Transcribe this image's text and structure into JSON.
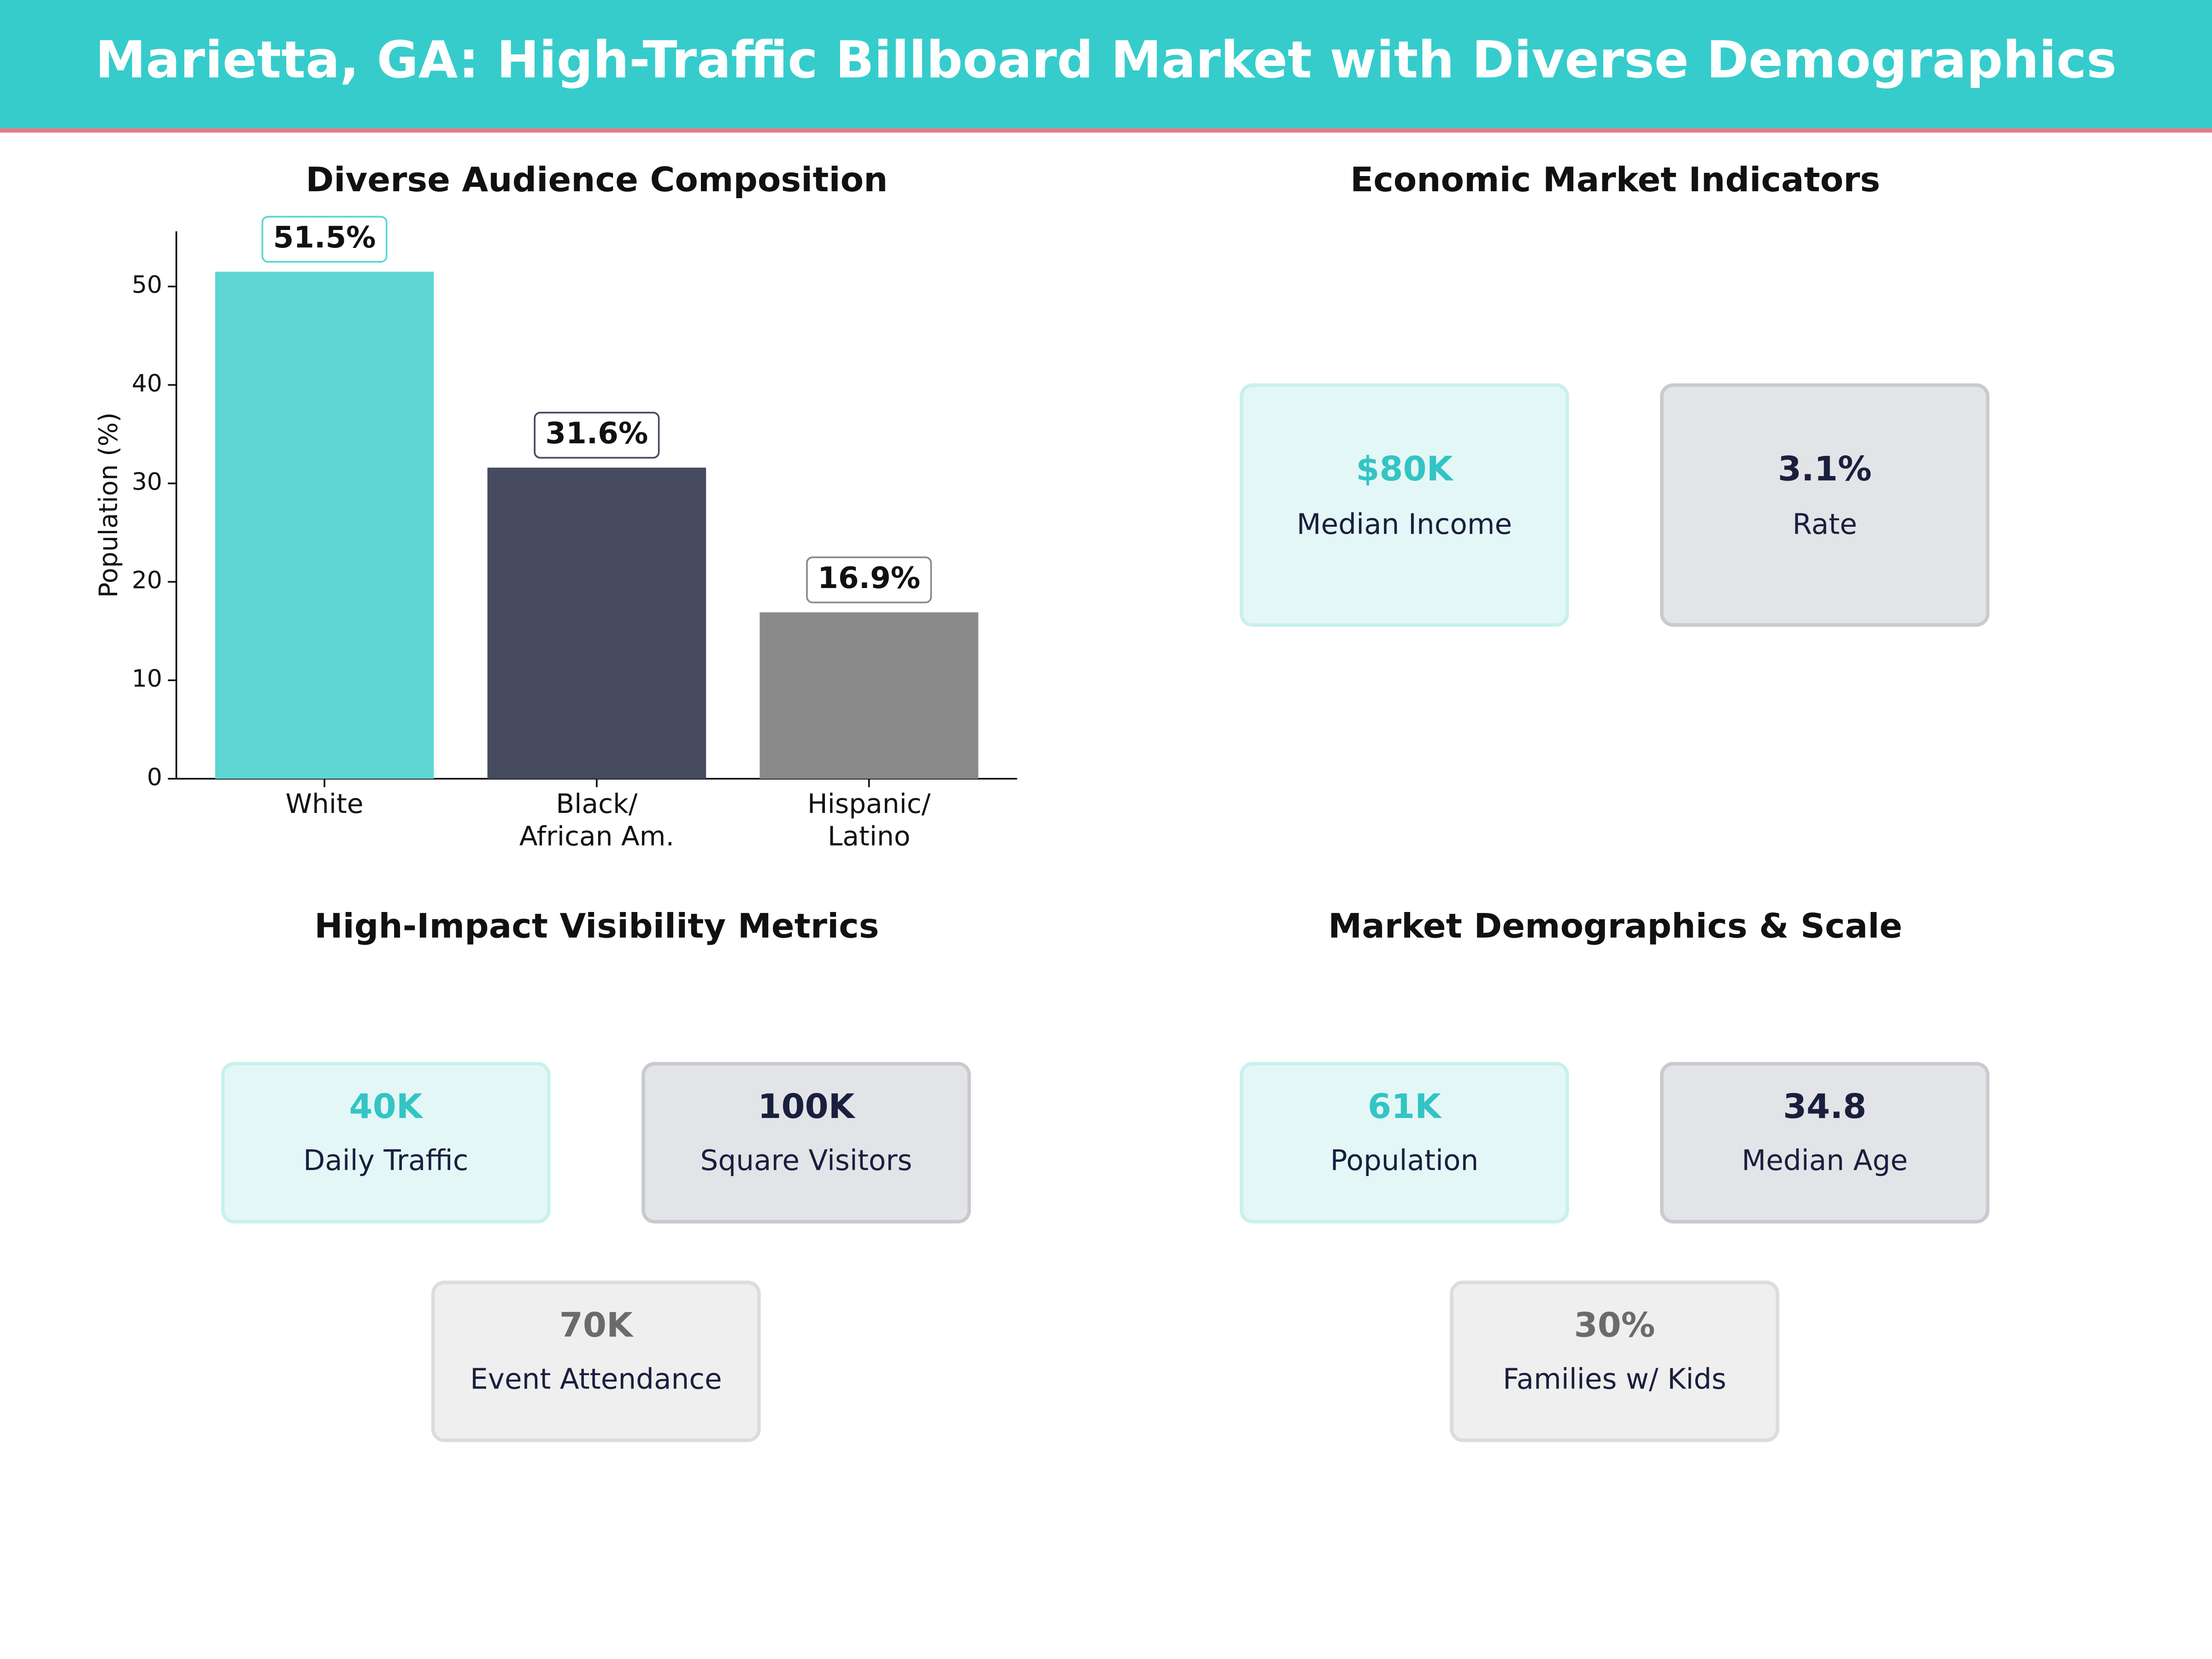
{
  "title": "Marietta, GA: High-Traffic Billboard Market with Diverse Demographics",
  "chart_data": {
    "type": "bar",
    "title": "Diverse Audience Composition",
    "y_label": "Population (%)",
    "categories": [
      "White",
      "Black/\nAfrican Am.",
      "Hispanic/\nLatino"
    ],
    "values": [
      51.5,
      31.6,
      16.9
    ],
    "value_labels": [
      "51.5%",
      "31.6%",
      "16.9%"
    ],
    "colors": [
      "#5dd6d4",
      "#464b60",
      "#8a8a8a"
    ],
    "ylim": [
      0,
      55.6
    ],
    "yticks": [
      0,
      10,
      20,
      30,
      40,
      50
    ],
    "grid": false
  },
  "panels": [
    {
      "title": "Economic Market Indicators",
      "cards": [
        {
          "value": "$80K",
          "label": "Median Income",
          "color": "#33c4c4"
        },
        {
          "value": "3.1%",
          "label": "Rate",
          "color": "#1a1f3d"
        }
      ]
    },
    {
      "title": "High-Impact Visibility Metrics",
      "cards": [
        {
          "value": "40K",
          "label": "Daily Traffic",
          "color": "#33c4c4"
        },
        {
          "value": "100K",
          "label": "Square Visitors",
          "color": "#1a1f3d"
        },
        {
          "value": "70K",
          "label": "Event Attendance",
          "color": "#6b6b6b"
        }
      ]
    },
    {
      "title": "Market Demographics & Scale",
      "cards": [
        {
          "value": "61K",
          "label": "Population",
          "color": "#33c4c4"
        },
        {
          "value": "34.8",
          "label": "Median Age",
          "color": "#1a1f3d"
        },
        {
          "value": "30%",
          "label": "Families w/ Kids",
          "color": "#6b6b6b"
        }
      ]
    }
  ]
}
